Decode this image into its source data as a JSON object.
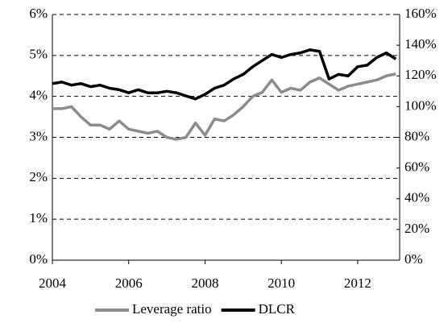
{
  "chart_data": {
    "type": "line",
    "x": [
      2004,
      2004.25,
      2004.5,
      2004.75,
      2005,
      2005.25,
      2005.5,
      2005.75,
      2006,
      2006.25,
      2006.5,
      2006.75,
      2007,
      2007.25,
      2007.5,
      2007.75,
      2008,
      2008.25,
      2008.5,
      2008.75,
      2009,
      2009.25,
      2009.5,
      2009.75,
      2010,
      2010.25,
      2010.5,
      2010.75,
      2011,
      2011.25,
      2011.5,
      2011.75,
      2012,
      2012.25,
      2012.5,
      2012.75,
      2013
    ],
    "xlim": [
      2004,
      2013.1
    ],
    "xticks": [
      2004,
      2006,
      2008,
      2010,
      2012
    ],
    "ylim": [
      0,
      6
    ],
    "yticks": [
      {
        "value": 0,
        "label": "0%"
      },
      {
        "value": 1,
        "label": "1%"
      },
      {
        "value": 2,
        "label": "2%"
      },
      {
        "value": 3,
        "label": "3%"
      },
      {
        "value": 4,
        "label": "4%"
      },
      {
        "value": 5,
        "label": "5%"
      },
      {
        "value": 6,
        "label": "6%"
      }
    ],
    "y2lim": [
      0,
      160
    ],
    "y2ticks": [
      {
        "value": 0,
        "label": "0%"
      },
      {
        "value": 20,
        "label": "20%"
      },
      {
        "value": 40,
        "label": "40%"
      },
      {
        "value": 60,
        "label": "60%"
      },
      {
        "value": 80,
        "label": "80%"
      },
      {
        "value": 100,
        "label": "100%"
      },
      {
        "value": 120,
        "label": "120%"
      },
      {
        "value": 140,
        "label": "140%"
      },
      {
        "value": 160,
        "label": "160%"
      }
    ],
    "grid": true,
    "legend": "bottom",
    "series": [
      {
        "name": "Leverage ratio",
        "color": "#8c8c8c",
        "values": [
          3.7,
          3.7,
          3.75,
          3.5,
          3.3,
          3.3,
          3.2,
          3.4,
          3.2,
          3.15,
          3.1,
          3.15,
          3.0,
          2.95,
          3.0,
          3.35,
          3.05,
          3.45,
          3.4,
          3.55,
          3.75,
          4.0,
          4.1,
          4.4,
          4.1,
          4.2,
          4.15,
          4.35,
          4.45,
          4.3,
          4.15,
          4.25,
          4.3,
          4.35,
          4.4,
          4.5,
          4.55
        ]
      },
      {
        "name": "DLCR",
        "color": "#000000",
        "axis": "y2",
        "values": [
          115,
          116,
          114,
          115,
          113,
          114,
          112,
          111,
          109,
          111,
          109,
          109,
          110,
          109,
          107,
          105,
          108,
          112,
          114,
          118,
          121,
          126,
          130,
          134,
          132,
          134,
          135,
          137,
          136,
          118,
          121,
          120,
          126,
          127,
          132,
          135,
          131
        ]
      }
    ]
  }
}
